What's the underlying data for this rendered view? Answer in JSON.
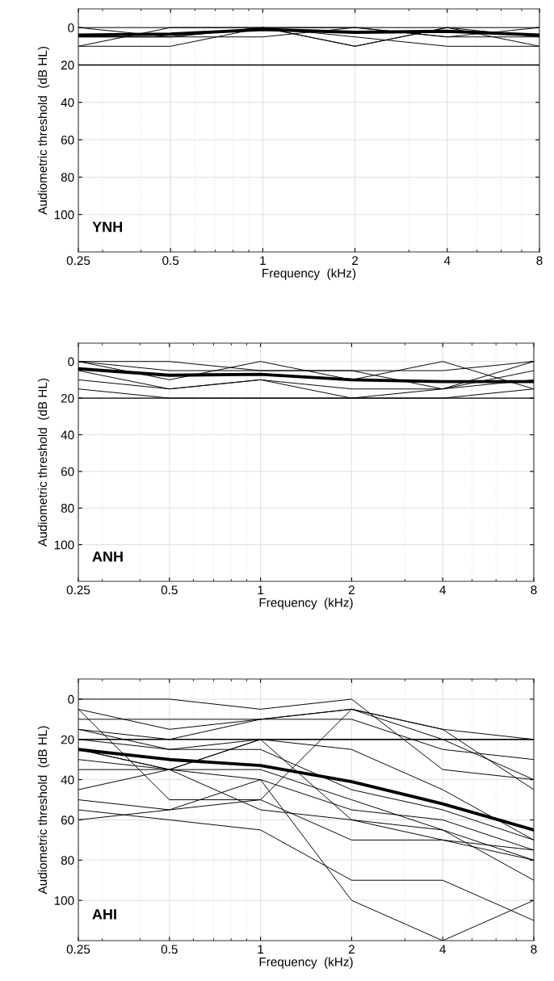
{
  "chart_data": [
    {
      "type": "line",
      "xlabel": "Frequency  (kHz)",
      "ylabel": "Audiometric threshold  (dB HL)",
      "annotations": [
        "YNH"
      ],
      "log": "x",
      "grid": true,
      "xlim": [
        0.25,
        8
      ],
      "xticks": [
        0.25,
        0.5,
        1,
        2,
        4,
        8
      ],
      "ylim": [
        120,
        -10
      ],
      "yticks": [
        0,
        20,
        40,
        60,
        80,
        100
      ],
      "x": [
        0.25,
        0.5,
        1,
        2,
        4,
        8
      ],
      "ref_lines": [
        {
          "axis": "y",
          "value": 20,
          "color": "#000000"
        }
      ],
      "series": [
        {
          "color": "#000000",
          "values": [
            10,
            10,
            0,
            5,
            10,
            10
          ]
        },
        {
          "color": "#000000",
          "values": [
            0,
            5,
            0,
            10,
            0,
            10
          ]
        },
        {
          "color": "#000000",
          "values": [
            10,
            0,
            0,
            0,
            5,
            0
          ]
        },
        {
          "color": "#000000",
          "values": [
            5,
            5,
            0,
            10,
            0,
            5
          ]
        },
        {
          "color": "#000000",
          "values": [
            0,
            0,
            0,
            0,
            0,
            0
          ]
        },
        {
          "color": "#000000",
          "values": [
            5,
            5,
            5,
            0,
            5,
            5
          ]
        },
        {
          "color": "#000000",
          "values": [
            4,
            3.5,
            1,
            2.5,
            2,
            4
          ]
        }
      ]
    },
    {
      "type": "line",
      "xlabel": "Frequency  (kHz)",
      "ylabel": "Audiometric threshold  (dB HL)",
      "annotations": [
        "ANH"
      ],
      "log": "x",
      "grid": true,
      "xlim": [
        0.25,
        8
      ],
      "xticks": [
        0.25,
        0.5,
        1,
        2,
        4,
        8
      ],
      "ylim": [
        120,
        -10
      ],
      "yticks": [
        0,
        20,
        40,
        60,
        80,
        100
      ],
      "x": [
        0.25,
        0.5,
        1,
        2,
        4,
        8
      ],
      "ref_lines": [
        {
          "axis": "y",
          "value": 20,
          "color": "#000000"
        }
      ],
      "series": [
        {
          "color": "#000000",
          "values": [
            0,
            0,
            5,
            5,
            15,
            0
          ]
        },
        {
          "color": "#000000",
          "values": [
            0,
            10,
            0,
            10,
            0,
            15
          ]
        },
        {
          "color": "#000000",
          "values": [
            5,
            15,
            10,
            20,
            15,
            5
          ]
        },
        {
          "color": "#000000",
          "values": [
            0,
            5,
            5,
            5,
            5,
            0
          ]
        },
        {
          "color": "#000000",
          "values": [
            10,
            15,
            10,
            15,
            15,
            10
          ]
        },
        {
          "color": "#000000",
          "values": [
            15,
            20,
            20,
            20,
            20,
            15
          ]
        },
        {
          "color": "#000000",
          "values": [
            4,
            7.5,
            7,
            10,
            11,
            11
          ]
        }
      ]
    },
    {
      "type": "line",
      "xlabel": "Frequency  (kHz)",
      "ylabel": "Audiometric threshold  (dB HL)",
      "annotations": [
        "AHI"
      ],
      "log": "x",
      "grid": true,
      "xlim": [
        0.25,
        8
      ],
      "xticks": [
        0.25,
        0.5,
        1,
        2,
        4,
        8
      ],
      "ylim": [
        120,
        -10
      ],
      "yticks": [
        0,
        20,
        40,
        60,
        80,
        100
      ],
      "x": [
        0.25,
        0.5,
        1,
        2,
        4,
        8
      ],
      "ref_lines": [
        {
          "axis": "y",
          "value": 20,
          "color": "#000000"
        }
      ],
      "series": [
        {
          "color": "#000000",
          "values": [
            0,
            0,
            5,
            0,
            35,
            40
          ]
        },
        {
          "color": "#000000",
          "values": [
            5,
            15,
            10,
            5,
            15,
            45
          ]
        },
        {
          "color": "#000000",
          "values": [
            10,
            10,
            10,
            5,
            15,
            20
          ]
        },
        {
          "color": "#000000",
          "values": [
            15,
            20,
            10,
            10,
            25,
            30
          ]
        },
        {
          "color": "#000000",
          "values": [
            15,
            25,
            20,
            20,
            20,
            20
          ]
        },
        {
          "color": "#000000",
          "values": [
            5,
            50,
            50,
            5,
            20,
            40
          ]
        },
        {
          "color": "#000000",
          "values": [
            25,
            35,
            20,
            25,
            45,
            70
          ]
        },
        {
          "color": "#000000",
          "values": [
            30,
            35,
            40,
            55,
            60,
            75
          ]
        },
        {
          "color": "#000000",
          "values": [
            35,
            35,
            35,
            50,
            65,
            90
          ]
        },
        {
          "color": "#000000",
          "values": [
            45,
            35,
            20,
            60,
            65,
            80
          ]
        },
        {
          "color": "#000000",
          "values": [
            50,
            55,
            50,
            70,
            70,
            80
          ]
        },
        {
          "color": "#000000",
          "values": [
            55,
            60,
            65,
            90,
            90,
            110
          ]
        },
        {
          "color": "#000000",
          "values": [
            60,
            55,
            40,
            100,
            120,
            100
          ]
        },
        {
          "color": "#000000",
          "values": [
            20,
            25,
            25,
            45,
            55,
            70
          ]
        },
        {
          "color": "#000000",
          "values": [
            25,
            35,
            55,
            60,
            70,
            75
          ]
        },
        {
          "color": "#000000",
          "values": [
            25,
            30,
            33,
            41,
            52,
            65
          ]
        }
      ]
    }
  ]
}
